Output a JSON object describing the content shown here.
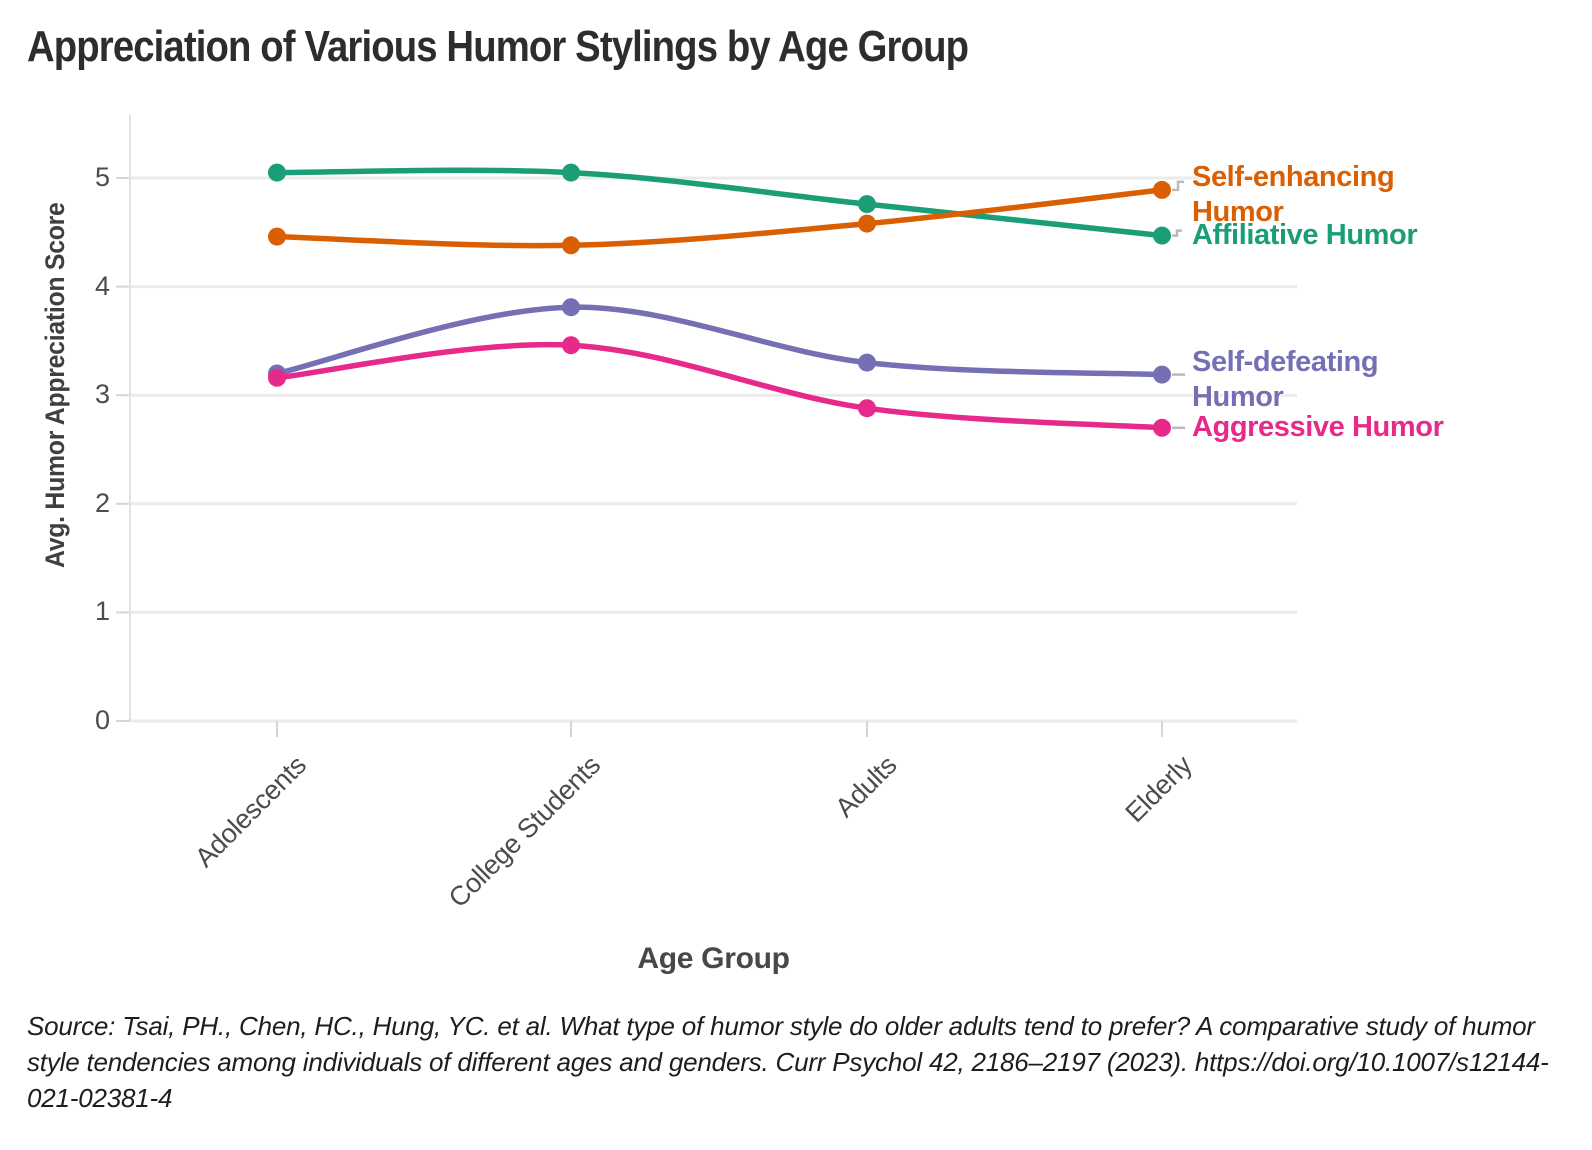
{
  "page": {
    "title": "Appreciation of Various Humor Stylings by Age Group",
    "source": "Source: Tsai, PH., Chen, HC., Hung, YC. et al. What type of humor style do older adults tend to prefer? A comparative study of humor style tendencies among individuals of different ages and genders. Curr Psychol 42, 2186–2197 (2023). https://doi.org/10.1007/s12144-021-02381-4"
  },
  "chart_data": {
    "type": "line",
    "title": "Appreciation of Various Humor Stylings by Age Group",
    "xlabel": "Age Group",
    "ylabel": "Avg. Humor Appreciation Score",
    "categories": [
      "Adolescents",
      "College Students",
      "Adults",
      "Elderly"
    ],
    "yticks": [
      0,
      1,
      2,
      3,
      4,
      5
    ],
    "ylim": [
      0,
      5.6
    ],
    "grid": true,
    "line_smoothing": true,
    "legend_position": "right-edge-labels",
    "series": [
      {
        "name": "Affiliative Humor",
        "label": "Affiliative Humor",
        "color": "#1b9e77",
        "values": [
          5.05,
          5.05,
          4.76,
          4.47
        ]
      },
      {
        "name": "Self-enhancing Humor",
        "label": "Self-enhancing\nHumor",
        "color": "#d95f02",
        "values": [
          4.46,
          4.38,
          4.58,
          4.89
        ]
      },
      {
        "name": "Self-defeating Humor",
        "label": "Self-defeating\nHumor",
        "color": "#7570b3",
        "values": [
          3.2,
          3.81,
          3.3,
          3.19
        ]
      },
      {
        "name": "Aggressive Humor",
        "label": "Aggressive Humor",
        "color": "#e7298a",
        "values": [
          3.16,
          3.46,
          2.88,
          2.7
        ]
      }
    ]
  }
}
